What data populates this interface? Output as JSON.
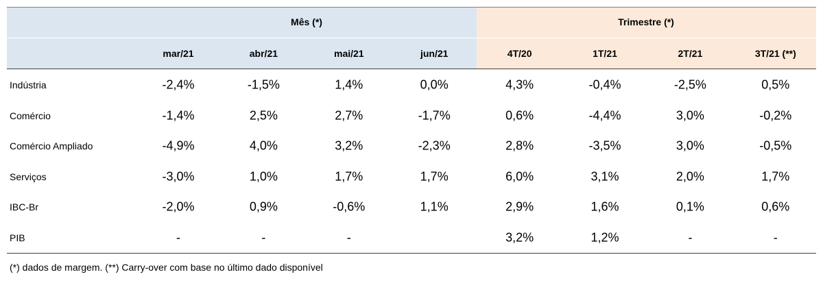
{
  "table": {
    "groups": [
      "Mês (*)",
      "Trimestre (*)"
    ],
    "columns": [
      "mar/21",
      "abr/21",
      "mai/21",
      "jun/21",
      "4T/20",
      "1T/21",
      "2T/21",
      "3T/21 (**)"
    ],
    "rows": [
      [
        "Indústria",
        "-2,4%",
        "-1,5%",
        "1,4%",
        "0,0%",
        "4,3%",
        "-0,4%",
        "-2,5%",
        "0,5%"
      ],
      [
        "Comércio",
        "-1,4%",
        "2,5%",
        "2,7%",
        "-1,7%",
        "0,6%",
        "-4,4%",
        "3,0%",
        "-0,2%"
      ],
      [
        "Comércio Ampliado",
        "-4,9%",
        "4,0%",
        "3,2%",
        "-2,3%",
        "2,8%",
        "-3,5%",
        "3,0%",
        "-0,5%"
      ],
      [
        "Serviços",
        "-3,0%",
        "1,0%",
        "1,7%",
        "1,7%",
        "6,0%",
        "3,1%",
        "2,0%",
        "1,7%"
      ],
      [
        "IBC-Br",
        "-2,0%",
        "0,9%",
        "-0,6%",
        "1,1%",
        "2,9%",
        "1,6%",
        "0,1%",
        "0,6%"
      ],
      [
        "PIB",
        "-",
        "-",
        "-",
        null,
        "3,2%",
        "1,2%",
        "-",
        "-"
      ]
    ],
    "note": "(*) dados de margem. (**) Carry-over com base no último dado disponível"
  }
}
